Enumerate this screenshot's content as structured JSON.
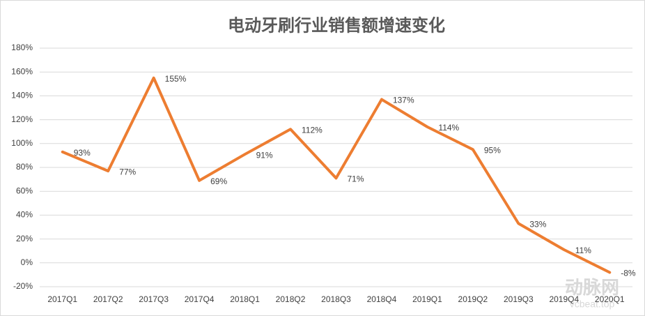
{
  "chart_data": {
    "type": "line",
    "title": "电动牙刷行业销售额增速变化",
    "categories": [
      "2017Q1",
      "2017Q2",
      "2017Q3",
      "2017Q4",
      "2018Q1",
      "2018Q2",
      "2018Q3",
      "2018Q4",
      "2019Q1",
      "2019Q2",
      "2019Q3",
      "2019Q4",
      "2020Q1"
    ],
    "values": [
      93,
      77,
      155,
      69,
      91,
      112,
      71,
      137,
      114,
      95,
      33,
      11,
      -8
    ],
    "value_labels": [
      "93%",
      "77%",
      "155%",
      "69%",
      "91%",
      "112%",
      "71%",
      "137%",
      "114%",
      "95%",
      "33%",
      "11%",
      "-8%"
    ],
    "color": "#ED7D31",
    "ylim": [
      -20,
      180
    ],
    "yticks": [
      {
        "value": -20,
        "label": "-20%"
      },
      {
        "value": 0,
        "label": "0%"
      },
      {
        "value": 20,
        "label": "20%"
      },
      {
        "value": 40,
        "label": "40%"
      },
      {
        "value": 60,
        "label": "60%"
      },
      {
        "value": 80,
        "label": "80%"
      },
      {
        "value": 100,
        "label": "100%"
      },
      {
        "value": 120,
        "label": "120%"
      },
      {
        "value": 140,
        "label": "140%"
      },
      {
        "value": 160,
        "label": "160%"
      },
      {
        "value": 180,
        "label": "180%"
      }
    ],
    "grid": true,
    "watermark": [
      "动脉网",
      "vcbeat.top"
    ]
  }
}
